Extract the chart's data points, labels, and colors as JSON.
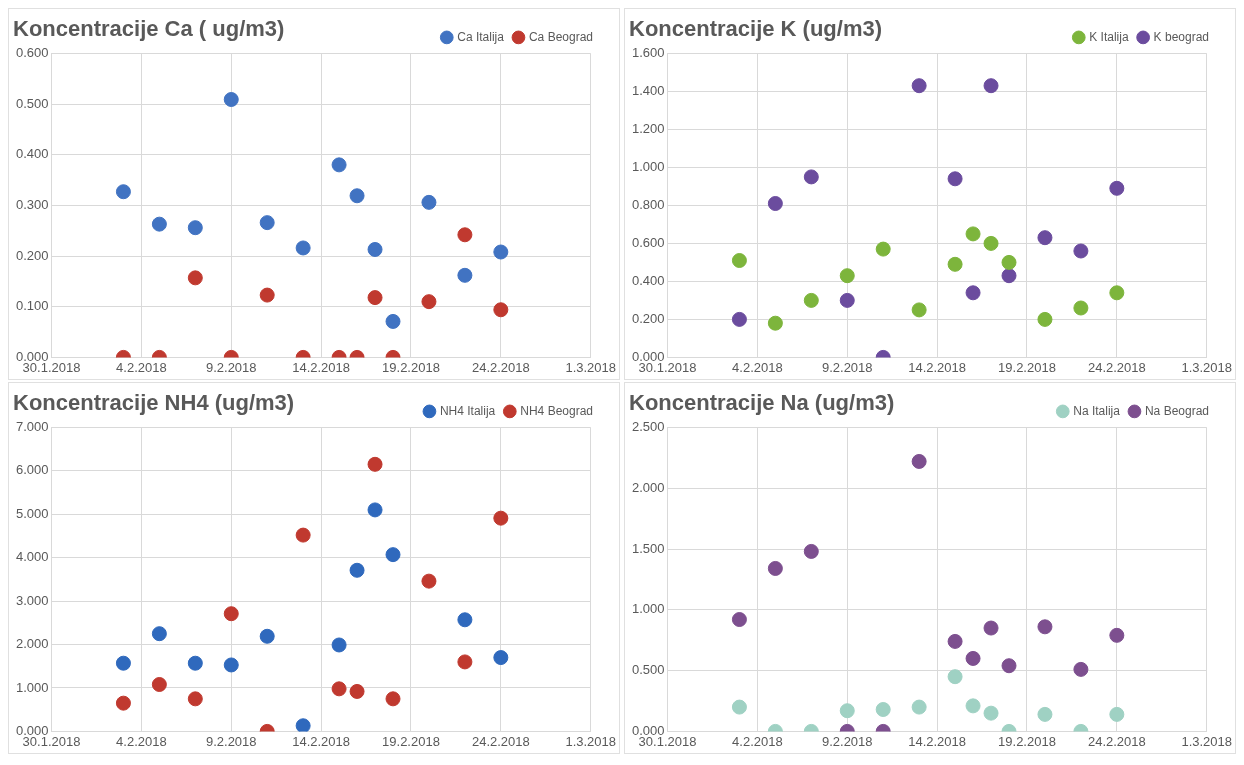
{
  "chart_data": [
    {
      "type": "scatter",
      "title": "Koncentracije Ca ( ug/m3)",
      "x": [
        "2018-02-03",
        "2018-02-05",
        "2018-02-07",
        "2018-02-09",
        "2018-02-11",
        "2018-02-13",
        "2018-02-15",
        "2018-02-16",
        "2018-02-17",
        "2018-02-18",
        "2018-02-20",
        "2018-02-22",
        "2018-02-24"
      ],
      "series": [
        {
          "name": "Ca Italija",
          "color": "#4173c2",
          "values": [
            0.327,
            0.263,
            0.256,
            0.509,
            0.266,
            0.216,
            0.38,
            0.319,
            0.213,
            0.071,
            0.306,
            0.162,
            0.208
          ]
        },
        {
          "name": "Ca Beograd",
          "color": "#c0392f",
          "values": [
            0,
            0,
            0.157,
            0,
            0.123,
            0,
            0,
            0,
            0.118,
            0,
            0.11,
            0.242,
            0.094
          ]
        }
      ],
      "xlim": [
        "2018-01-30",
        "2018-03-01"
      ],
      "xticks": [
        {
          "value": "2018-01-30",
          "label": "30.1.2018"
        },
        {
          "value": "2018-02-04",
          "label": "4.2.2018"
        },
        {
          "value": "2018-02-09",
          "label": "9.2.2018"
        },
        {
          "value": "2018-02-14",
          "label": "14.2.2018"
        },
        {
          "value": "2018-02-19",
          "label": "19.2.2018"
        },
        {
          "value": "2018-02-24",
          "label": "24.2.2018"
        },
        {
          "value": "2018-03-01",
          "label": "1.3.2018"
        }
      ],
      "ylim": [
        0,
        0.6
      ],
      "yticks": [
        {
          "value": 0,
          "label": "0.000"
        },
        {
          "value": 0.1,
          "label": "0.100"
        },
        {
          "value": 0.2,
          "label": "0.200"
        },
        {
          "value": 0.3,
          "label": "0.300"
        },
        {
          "value": 0.4,
          "label": "0.400"
        },
        {
          "value": 0.5,
          "label": "0.500"
        },
        {
          "value": 0.6,
          "label": "0.600"
        }
      ],
      "grid": true,
      "legend": "top right",
      "marker": "circle"
    },
    {
      "type": "scatter",
      "title": "Koncentracije K (ug/m3)",
      "x": [
        "2018-02-03",
        "2018-02-05",
        "2018-02-07",
        "2018-02-09",
        "2018-02-11",
        "2018-02-13",
        "2018-02-15",
        "2018-02-16",
        "2018-02-17",
        "2018-02-18",
        "2018-02-20",
        "2018-02-22",
        "2018-02-24"
      ],
      "series": [
        {
          "name": "K Italija",
          "color": "#7db53c",
          "values": [
            0.51,
            0.18,
            0.3,
            0.43,
            0.57,
            0.25,
            0.49,
            0.65,
            0.6,
            0.5,
            0.2,
            0.26,
            0.34
          ]
        },
        {
          "name": "K beograd",
          "color": "#6b4c9e",
          "values": [
            0.2,
            0.81,
            0.95,
            0.3,
            0,
            1.43,
            0.94,
            0.34,
            1.43,
            0.43,
            0.63,
            0.56,
            0.89
          ]
        }
      ],
      "xlim": [
        "2018-01-30",
        "2018-03-01"
      ],
      "xticks": [
        {
          "value": "2018-01-30",
          "label": "30.1.2018"
        },
        {
          "value": "2018-02-04",
          "label": "4.2.2018"
        },
        {
          "value": "2018-02-09",
          "label": "9.2.2018"
        },
        {
          "value": "2018-02-14",
          "label": "14.2.2018"
        },
        {
          "value": "2018-02-19",
          "label": "19.2.2018"
        },
        {
          "value": "2018-02-24",
          "label": "24.2.2018"
        },
        {
          "value": "2018-03-01",
          "label": "1.3.2018"
        }
      ],
      "ylim": [
        0,
        1.6
      ],
      "yticks": [
        {
          "value": 0,
          "label": "0.000"
        },
        {
          "value": 0.2,
          "label": "0.200"
        },
        {
          "value": 0.4,
          "label": "0.400"
        },
        {
          "value": 0.6,
          "label": "0.600"
        },
        {
          "value": 0.8,
          "label": "0.800"
        },
        {
          "value": 1,
          "label": "1.000"
        },
        {
          "value": 1.2,
          "label": "1.200"
        },
        {
          "value": 1.4,
          "label": "1.400"
        },
        {
          "value": 1.6,
          "label": "1.600"
        }
      ],
      "grid": true,
      "legend": "top right",
      "marker": "circle"
    },
    {
      "type": "scatter",
      "title": "Koncentracije NH4 (ug/m3)",
      "x": [
        "2018-02-03",
        "2018-02-05",
        "2018-02-07",
        "2018-02-09",
        "2018-02-11",
        "2018-02-13",
        "2018-02-15",
        "2018-02-16",
        "2018-02-17",
        "2018-02-18",
        "2018-02-20",
        "2018-02-22",
        "2018-02-24"
      ],
      "series": [
        {
          "name": "NH4 Italija",
          "color": "#2f69bd",
          "values": [
            1.57,
            2.25,
            1.57,
            1.53,
            2.19,
            0.13,
            1.99,
            3.71,
            5.1,
            4.07,
            null,
            2.57,
            1.7
          ]
        },
        {
          "name": "NH4 Beograd",
          "color": "#c0392f",
          "values": [
            0.65,
            1.08,
            0.75,
            2.71,
            0,
            4.52,
            0.98,
            0.92,
            6.15,
            0.75,
            3.46,
            1.6,
            4.91
          ]
        }
      ],
      "xlim": [
        "2018-01-30",
        "2018-03-01"
      ],
      "xticks": [
        {
          "value": "2018-01-30",
          "label": "30.1.2018"
        },
        {
          "value": "2018-02-04",
          "label": "4.2.2018"
        },
        {
          "value": "2018-02-09",
          "label": "9.2.2018"
        },
        {
          "value": "2018-02-14",
          "label": "14.2.2018"
        },
        {
          "value": "2018-02-19",
          "label": "19.2.2018"
        },
        {
          "value": "2018-02-24",
          "label": "24.2.2018"
        },
        {
          "value": "2018-03-01",
          "label": "1.3.2018"
        }
      ],
      "ylim": [
        0,
        7
      ],
      "yticks": [
        {
          "value": 0,
          "label": "0.000"
        },
        {
          "value": 1,
          "label": "1.000"
        },
        {
          "value": 2,
          "label": "2.000"
        },
        {
          "value": 3,
          "label": "3.000"
        },
        {
          "value": 4,
          "label": "4.000"
        },
        {
          "value": 5,
          "label": "5.000"
        },
        {
          "value": 6,
          "label": "6.000"
        },
        {
          "value": 7,
          "label": "7.000"
        }
      ],
      "grid": true,
      "legend": "top right",
      "marker": "circle"
    },
    {
      "type": "scatter",
      "title": "Koncentracije Na (ug/m3)",
      "x": [
        "2018-02-03",
        "2018-02-05",
        "2018-02-07",
        "2018-02-09",
        "2018-02-11",
        "2018-02-13",
        "2018-02-15",
        "2018-02-16",
        "2018-02-17",
        "2018-02-18",
        "2018-02-20",
        "2018-02-22",
        "2018-02-24"
      ],
      "series": [
        {
          "name": "Na Italija",
          "color": "#9fd1c3",
          "values": [
            0.2,
            0,
            0,
            0.17,
            0.18,
            0.2,
            0.45,
            0.21,
            0.15,
            0,
            0.14,
            0,
            0.14
          ]
        },
        {
          "name": "Na Beograd",
          "color": "#7d4f8f",
          "values": [
            0.92,
            1.34,
            1.48,
            0,
            0,
            2.22,
            0.74,
            0.6,
            0.85,
            0.54,
            0.86,
            0.51,
            0.79
          ]
        }
      ],
      "xlim": [
        "2018-01-30",
        "2018-03-01"
      ],
      "xticks": [
        {
          "value": "2018-01-30",
          "label": "30.1.2018"
        },
        {
          "value": "2018-02-04",
          "label": "4.2.2018"
        },
        {
          "value": "2018-02-09",
          "label": "9.2.2018"
        },
        {
          "value": "2018-02-14",
          "label": "14.2.2018"
        },
        {
          "value": "2018-02-19",
          "label": "19.2.2018"
        },
        {
          "value": "2018-02-24",
          "label": "24.2.2018"
        },
        {
          "value": "2018-03-01",
          "label": "1.3.2018"
        }
      ],
      "ylim": [
        0,
        2.5
      ],
      "yticks": [
        {
          "value": 0,
          "label": "0.000"
        },
        {
          "value": 0.5,
          "label": "0.500"
        },
        {
          "value": 1,
          "label": "1.000"
        },
        {
          "value": 1.5,
          "label": "1.500"
        },
        {
          "value": 2,
          "label": "2.000"
        },
        {
          "value": 2.5,
          "label": "2.500"
        }
      ],
      "grid": true,
      "legend": "top right",
      "marker": "circle"
    }
  ]
}
